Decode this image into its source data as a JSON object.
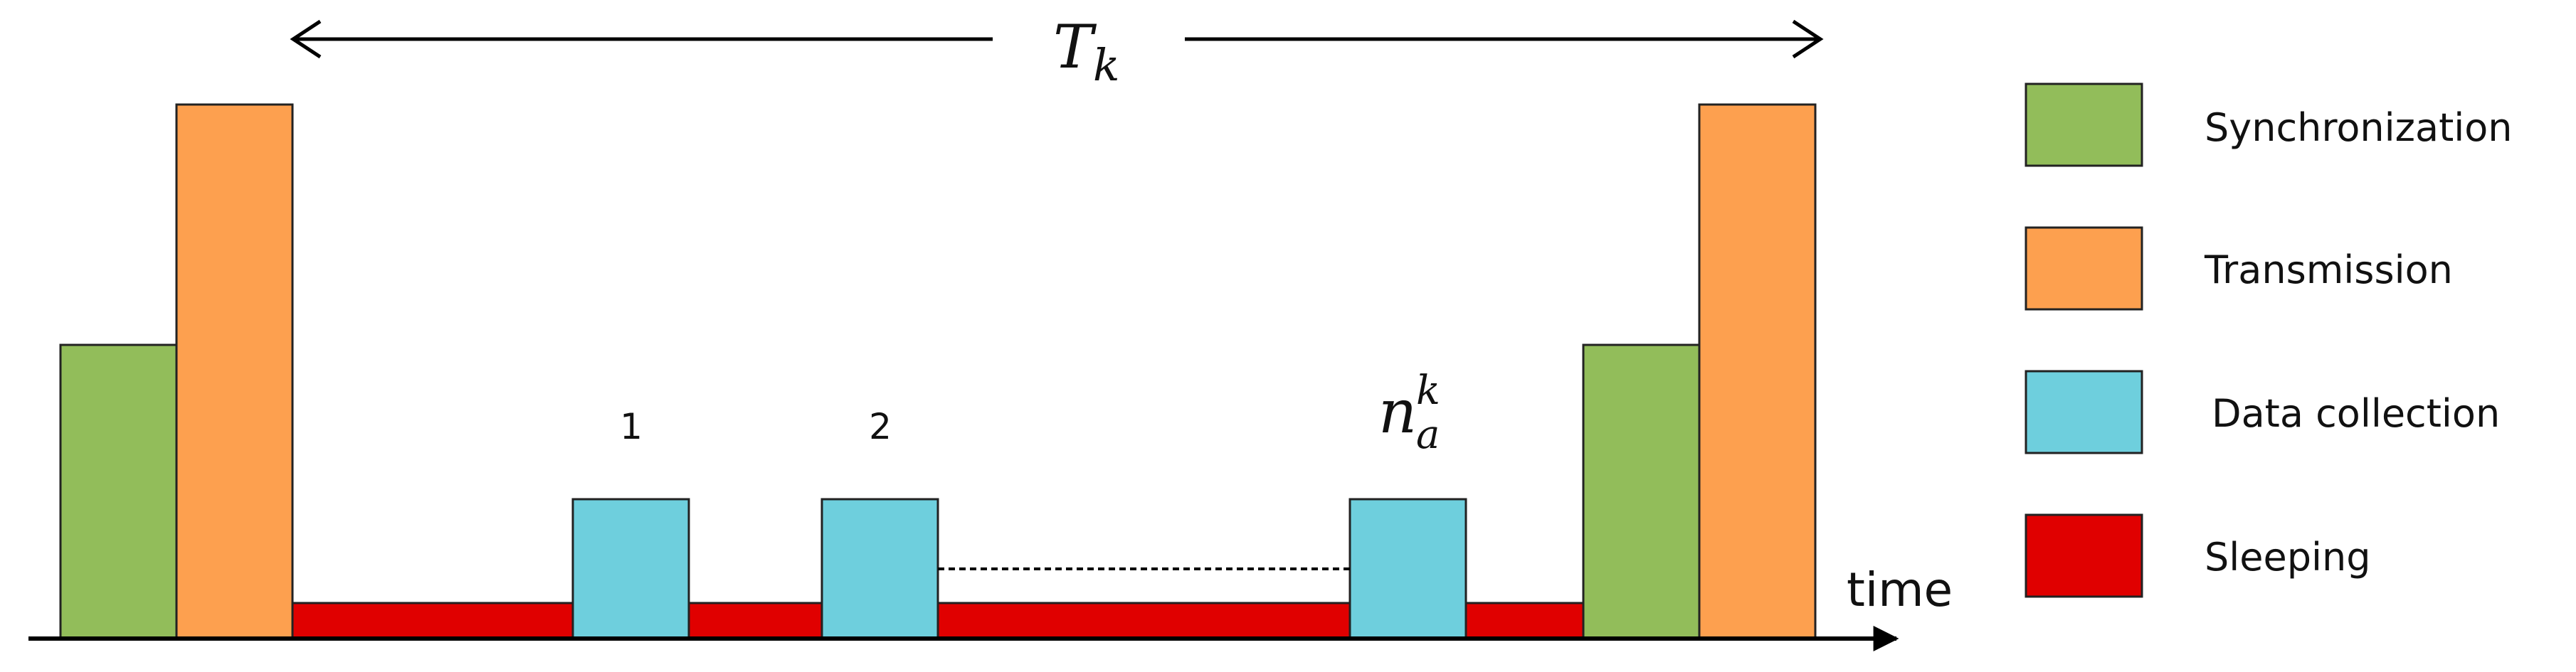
{
  "colors": {
    "synchronization": "#92bd5a",
    "transmission": "#fda04f",
    "data_collection": "#6ecfdd",
    "sleeping": "#e00000",
    "line": "#000000"
  },
  "period": {
    "symbol": "T",
    "subscript": "k"
  },
  "time_axis": {
    "label": "time"
  },
  "slots": {
    "first": "1",
    "second": "2",
    "last": {
      "symbol": "n",
      "subscript": "a",
      "superscript": "k"
    }
  },
  "legend": [
    {
      "label": "Synchronization",
      "color": "#92bd5a"
    },
    {
      "label": "Transmission",
      "color": "#fda04f"
    },
    {
      "label": "Data collection",
      "color": "#6ecfdd"
    },
    {
      "label": "Sleeping",
      "color": "#e00000"
    }
  ]
}
